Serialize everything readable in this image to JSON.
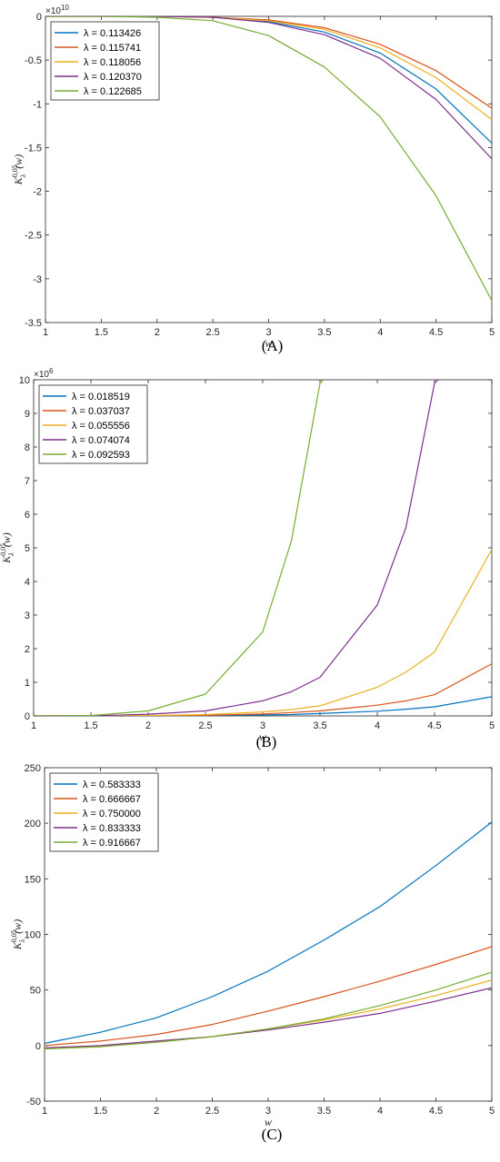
{
  "colors": [
    "#0072bd",
    "#d95319",
    "#edb120",
    "#7e2f8e",
    "#77ac30"
  ],
  "chart_data": [
    {
      "type": "line",
      "panel_label": "(A)",
      "xlabel": "w",
      "ylabel": "K",
      "ylabel_sup": "0,05",
      "ylabel_sub": "λ",
      "ylabel_arg": "(w)",
      "xlim": [
        1,
        5
      ],
      "ylim": [
        -3.5,
        0
      ],
      "y_multiplier": "×10",
      "y_multiplier_exp": "10",
      "xticks": [
        1,
        1.5,
        2,
        2.5,
        3,
        3.5,
        4,
        4.5,
        5
      ],
      "xtick_labels": [
        "1",
        "1.5",
        "2",
        "2.5",
        "3",
        "3.5",
        "4",
        "4.5",
        "5"
      ],
      "yticks": [
        0,
        -0.5,
        -1,
        -1.5,
        -2,
        -2.5,
        -3,
        -3.5
      ],
      "ytick_labels": [
        "0",
        "-0.5",
        "-1",
        "-1.5",
        "-2",
        "-2.5",
        "-3",
        "-3.5"
      ],
      "legend_position": "top-left",
      "x": [
        1,
        1.5,
        2,
        2.5,
        3,
        3.5,
        4,
        4.5,
        5
      ],
      "series": [
        {
          "name": "λ = 0.113426",
          "values": [
            0,
            0,
            0,
            -0.01,
            -0.06,
            -0.18,
            -0.42,
            -0.83,
            -1.45
          ]
        },
        {
          "name": "λ = 0.115741",
          "values": [
            0,
            0,
            0,
            -0.01,
            -0.04,
            -0.13,
            -0.32,
            -0.62,
            -1.05
          ]
        },
        {
          "name": "λ = 0.118056",
          "values": [
            0,
            0,
            0,
            -0.01,
            -0.05,
            -0.15,
            -0.36,
            -0.7,
            -1.18
          ]
        },
        {
          "name": "λ = 0.120370",
          "values": [
            0,
            0,
            0,
            -0.01,
            -0.07,
            -0.21,
            -0.48,
            -0.95,
            -1.63
          ]
        },
        {
          "name": "λ = 0.122685",
          "values": [
            0,
            0,
            -0.01,
            -0.05,
            -0.22,
            -0.58,
            -1.15,
            -2.05,
            -3.25
          ]
        }
      ]
    },
    {
      "type": "line",
      "panel_label": "(B)",
      "xlabel": "w",
      "ylabel": "K",
      "ylabel_sup": "0,05",
      "ylabel_sub": "λ",
      "ylabel_arg": "(w)",
      "xlim": [
        1,
        5
      ],
      "ylim": [
        0,
        10
      ],
      "y_multiplier": "×10",
      "y_multiplier_exp": "6",
      "xticks": [
        1,
        1.5,
        2,
        2.5,
        3,
        3.5,
        4,
        4.5,
        5
      ],
      "xtick_labels": [
        "1",
        "1.5",
        "2",
        "2.5",
        "3",
        "3.5",
        "4",
        "4.5",
        "5"
      ],
      "yticks": [
        0,
        1,
        2,
        3,
        4,
        5,
        6,
        7,
        8,
        9,
        10
      ],
      "ytick_labels": [
        "0",
        "1",
        "2",
        "3",
        "4",
        "5",
        "6",
        "7",
        "8",
        "9",
        "10"
      ],
      "legend_position": "top-left",
      "x": [
        1,
        1.5,
        2,
        2.5,
        3,
        3.25,
        3.5,
        4,
        4.25,
        4.5,
        5
      ],
      "series": [
        {
          "name": "λ = 0.018519",
          "values": [
            0,
            0,
            0,
            0.01,
            0.03,
            0.04,
            0.07,
            0.14,
            0.2,
            0.27,
            0.57
          ]
        },
        {
          "name": "λ = 0.037037",
          "values": [
            0,
            0,
            0.01,
            0.02,
            0.06,
            0.1,
            0.15,
            0.32,
            0.45,
            0.63,
            1.55
          ]
        },
        {
          "name": "λ = 0.055556",
          "values": [
            0,
            0,
            0.01,
            0.04,
            0.12,
            0.19,
            0.3,
            0.85,
            1.3,
            1.9,
            4.95
          ]
        },
        {
          "name": "λ = 0.074074",
          "values": [
            0,
            0,
            0.05,
            0.15,
            0.45,
            0.72,
            1.15,
            3.3,
            5.6,
            9.9,
            null
          ]
        },
        {
          "name": "λ = 0.092593",
          "values": [
            0,
            0.01,
            0.15,
            0.65,
            2.5,
            5.2,
            9.9,
            null,
            null,
            null,
            null
          ]
        }
      ]
    },
    {
      "type": "line",
      "panel_label": "(C)",
      "xlabel": "w",
      "ylabel": "K",
      "ylabel_sup": "0,05",
      "ylabel_sub": "λ",
      "ylabel_arg": "(w)",
      "xlim": [
        1,
        5
      ],
      "ylim": [
        -50,
        250
      ],
      "y_multiplier": "",
      "y_multiplier_exp": "",
      "xticks": [
        1,
        1.5,
        2,
        2.5,
        3,
        3.5,
        4,
        4.5,
        5
      ],
      "xtick_labels": [
        "1",
        "1.5",
        "2",
        "2.5",
        "3",
        "3.5",
        "4",
        "4.5",
        "5"
      ],
      "yticks": [
        -50,
        0,
        50,
        100,
        150,
        200,
        250
      ],
      "ytick_labels": [
        "-50",
        "0",
        "50",
        "100",
        "150",
        "200",
        "250"
      ],
      "legend_position": "top-left",
      "x": [
        1,
        1.5,
        2,
        2.5,
        3,
        3.5,
        4,
        4.5,
        5
      ],
      "series": [
        {
          "name": "λ = 0.583333",
          "values": [
            2,
            12,
            25,
            44,
            67,
            95,
            125,
            162,
            201
          ]
        },
        {
          "name": "λ = 0.666667",
          "values": [
            0,
            4,
            10,
            19,
            31,
            44,
            58,
            73,
            89
          ]
        },
        {
          "name": "λ = 0.750000",
          "values": [
            -2,
            -1,
            3,
            8,
            15,
            23,
            33,
            45,
            59
          ]
        },
        {
          "name": "λ = 0.833333",
          "values": [
            -2,
            0,
            4,
            8,
            14,
            21,
            29,
            40,
            52
          ]
        },
        {
          "name": "λ = 0.916667",
          "values": [
            -3,
            -1,
            3,
            8,
            15,
            24,
            36,
            50,
            66
          ]
        }
      ]
    }
  ]
}
